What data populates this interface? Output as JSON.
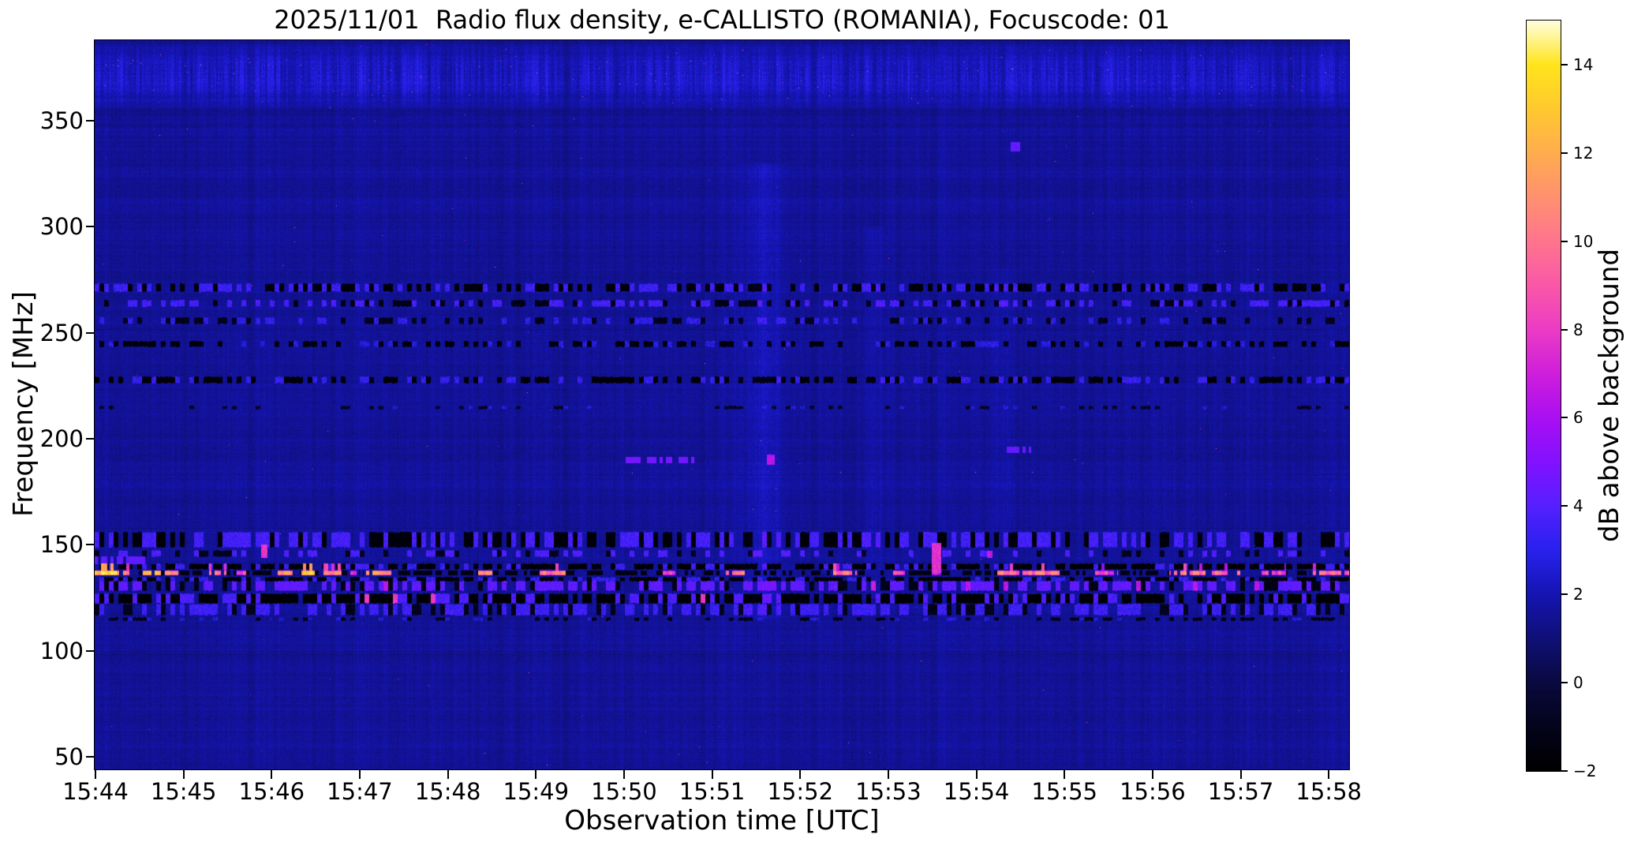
{
  "chart_data": {
    "type": "heatmap",
    "title": "2025/11/01  Radio flux density, e-CALLISTO (ROMANIA), Focuscode: 01",
    "xlabel": "Observation time [UTC]",
    "ylabel": "Frequency [MHz]",
    "colorbar_label": "dB above background",
    "x_ticks": [
      "15:44",
      "15:45",
      "15:46",
      "15:47",
      "15:48",
      "15:49",
      "15:50",
      "15:51",
      "15:52",
      "15:53",
      "15:54",
      "15:55",
      "15:56",
      "15:57",
      "15:58"
    ],
    "y_ticks": [
      "350",
      "300",
      "250",
      "200",
      "150",
      "100",
      "50"
    ],
    "colorbar_ticks": [
      "14",
      "12",
      "10",
      "8",
      "6",
      "4",
      "2",
      "0",
      "−2"
    ],
    "colorbar_tick_values": [
      14,
      12,
      10,
      8,
      6,
      4,
      2,
      0,
      -2
    ],
    "xlim_minutes": [
      0,
      14.24
    ],
    "ylim_mhz": [
      44,
      388
    ],
    "clim_db": [
      -2,
      15
    ],
    "grid": false,
    "legend": "colorbar-right",
    "background_level_db": 1.55,
    "colormap_stops": [
      [
        -2,
        "#000000"
      ],
      [
        -1,
        "#04041c"
      ],
      [
        0,
        "#0a0a40"
      ],
      [
        1,
        "#101078"
      ],
      [
        2,
        "#1515b2"
      ],
      [
        3,
        "#2822ee"
      ],
      [
        4,
        "#5620ff"
      ],
      [
        5,
        "#8312ff"
      ],
      [
        6,
        "#aa0ff2"
      ],
      [
        7,
        "#cf1fdc"
      ],
      [
        8,
        "#ec3cc5"
      ],
      [
        9,
        "#fa58a8"
      ],
      [
        10,
        "#ff758e"
      ],
      [
        11,
        "#ff9170"
      ],
      [
        12,
        "#ffad4e"
      ],
      [
        13,
        "#ffc930"
      ],
      [
        14,
        "#ffe51c"
      ],
      [
        15,
        "#ffffe0"
      ]
    ],
    "striation_band": {
      "f_lo": 356,
      "f_hi": 386,
      "amp": 1.0,
      "p_hot": 0.0015,
      "hot_v": 8.5
    },
    "bands": [
      {
        "name": "271MHz",
        "f_lo": 269.5,
        "f_hi": 273.5,
        "p_dark": 0.38,
        "p_blue": 0.3,
        "blue": 3.4,
        "dark": -1.6
      },
      {
        "name": "264MHz",
        "f_lo": 262.5,
        "f_hi": 265.5,
        "p_dark": 0.22,
        "p_blue": 0.38,
        "blue": 3.6,
        "dark": -1.2
      },
      {
        "name": "256MHz",
        "f_lo": 254.5,
        "f_hi": 257.5,
        "p_dark": 0.25,
        "p_blue": 0.22,
        "blue": 3.0,
        "dark": -1.0
      },
      {
        "name": "245MHz",
        "f_lo": 243.5,
        "f_hi": 246.0,
        "p_dark": 0.4,
        "p_blue": 0.15,
        "blue": 2.8,
        "dark": -1.5
      },
      {
        "name": "228MHz",
        "f_lo": 226.5,
        "f_hi": 229.5,
        "p_dark": 0.45,
        "p_blue": 0.2,
        "blue": 3.2,
        "dark": -1.8
      },
      {
        "name": "215MHz",
        "f_lo": 214.0,
        "f_hi": 215.5,
        "p_dark": 0.15,
        "p_blue": 0.08,
        "blue": 2.6,
        "dark": -0.8
      },
      {
        "name": "152MHz",
        "f_lo": 149.0,
        "f_hi": 156.0,
        "p_dark": 0.3,
        "p_blue": 0.35,
        "blue": 3.6,
        "dark": -1.6
      },
      {
        "name": "146MHz",
        "f_lo": 144.5,
        "f_hi": 147.5,
        "p_dark": 0.15,
        "p_blue": 0.22,
        "blue": 3.8,
        "dark": -0.9
      },
      {
        "name": "140MHz-dark",
        "f_lo": 138.5,
        "f_hi": 141.0,
        "p_dark": 0.62,
        "p_blue": 0.18,
        "blue": 3.4,
        "dark": -1.9
      },
      {
        "name": "134MHz-dark",
        "f_lo": 133.0,
        "f_hi": 135.0,
        "p_dark": 0.5,
        "p_blue": 0.2,
        "blue": 3.2,
        "dark": -1.8
      },
      {
        "name": "131MHz-speckle",
        "f_lo": 128.5,
        "f_hi": 133.0,
        "p_dark": 0.2,
        "p_blue": 0.45,
        "blue": 4.2,
        "dark": -1.2,
        "p_hot": 0.02,
        "hot": 6.5
      },
      {
        "name": "124MHz-dark",
        "f_lo": 122.5,
        "f_hi": 127.0,
        "p_dark": 0.6,
        "p_blue": 0.25,
        "blue": 3.8,
        "dark": -1.9,
        "p_hot": 0.015,
        "hot": 8.0
      },
      {
        "name": "119MHz-speckle",
        "f_lo": 117.0,
        "f_hi": 122.0,
        "p_dark": 0.18,
        "p_blue": 0.4,
        "blue": 3.4,
        "dark": -1.0
      },
      {
        "name": "115MHz",
        "f_lo": 114.5,
        "f_hi": 116.0,
        "p_dark": 0.3,
        "p_blue": 0.1,
        "blue": 2.6,
        "dark": -1.2
      }
    ],
    "burst_line": {
      "f_lo": 135.9,
      "f_hi": 137.9,
      "flare_hi": 141.0,
      "gap_dark": -1.2,
      "gap_p": 0.55,
      "levels": {
        "yellow": [
          11.5,
          14.5
        ],
        "orange": [
          9.8,
          12.3
        ],
        "pinkorange": [
          8.5,
          11.5
        ],
        "pink": [
          7.3,
          9.5
        ],
        "magenta": [
          6.3,
          8.3
        ]
      },
      "segments": [
        [
          0.0,
          0.28,
          "yellow"
        ],
        [
          0.32,
          0.5,
          "orange"
        ],
        [
          0.55,
          0.75,
          "yellow"
        ],
        [
          0.8,
          0.95,
          "orange"
        ],
        [
          1.3,
          1.5,
          "orange"
        ],
        [
          1.6,
          1.72,
          "pink"
        ],
        [
          2.05,
          2.25,
          "orange"
        ],
        [
          2.35,
          2.5,
          "yellow"
        ],
        [
          2.6,
          2.8,
          "orange"
        ],
        [
          2.9,
          3.0,
          "pink"
        ],
        [
          3.05,
          3.45,
          "orange"
        ],
        [
          4.35,
          4.52,
          "orange"
        ],
        [
          5.05,
          5.35,
          "pinkorange"
        ],
        [
          6.45,
          6.62,
          "pink"
        ],
        [
          7.15,
          7.45,
          "pinkorange"
        ],
        [
          8.35,
          8.65,
          "pinkorange"
        ],
        [
          9.05,
          9.2,
          "pink"
        ],
        [
          9.5,
          9.62,
          "magenta"
        ],
        [
          10.25,
          10.95,
          "pinkorange"
        ],
        [
          11.35,
          11.62,
          "pink"
        ],
        [
          12.2,
          13.0,
          "pinkorange"
        ],
        [
          13.25,
          13.52,
          "pink"
        ],
        [
          13.8,
          14.24,
          "pinkorange"
        ]
      ]
    },
    "events": [
      {
        "name": "magenta-spike",
        "t1": 9.5,
        "t2": 9.6,
        "f_lo": 137,
        "f_hi": 151,
        "v": 7.6,
        "gate": 0.9
      },
      {
        "name": "blue-streak-190",
        "t1": 6.03,
        "t2": 6.83,
        "f_lo": 188.8,
        "f_hi": 191.6,
        "v": 4.7,
        "gate": 0.72
      },
      {
        "name": "bright-dot-190",
        "t1": 7.63,
        "t2": 7.71,
        "f_lo": 188.0,
        "f_hi": 192.5,
        "v": 6.4,
        "gate": 1
      },
      {
        "name": "blue-dash-195",
        "t1": 10.35,
        "t2": 10.62,
        "f_lo": 193.8,
        "f_hi": 196.4,
        "v": 4.3,
        "gate": 0.6
      },
      {
        "name": "blue-row-143-start",
        "t1": 0.0,
        "t2": 0.56,
        "f_lo": 141.3,
        "f_hi": 144.6,
        "v": 4.2,
        "gate": 0.78
      },
      {
        "name": "blue-dot-338",
        "t1": 10.4,
        "t2": 10.5,
        "f_lo": 336,
        "f_hi": 340,
        "v": 4.3,
        "gate": 1
      },
      {
        "name": "pink-spike-147",
        "t1": 1.89,
        "t2": 1.95,
        "f_lo": 144,
        "f_hi": 150,
        "v": 7.8,
        "gate": 1
      },
      {
        "name": "magenta-dot-146",
        "t1": 10.13,
        "t2": 10.18,
        "f_lo": 144,
        "f_hi": 147,
        "v": 6.6,
        "gate": 1
      }
    ],
    "vertical_columns": [
      {
        "t": 7.6,
        "halfw": 0.22,
        "f_lo": 115,
        "f_hi": 330,
        "amp": 0.55
      },
      {
        "t": 8.85,
        "halfw": 0.12,
        "f_lo": 125,
        "f_hi": 300,
        "amp": 0.4
      },
      {
        "t": 10.3,
        "halfw": 0.1,
        "f_lo": 150,
        "f_hi": 280,
        "amp": 0.3
      }
    ]
  }
}
